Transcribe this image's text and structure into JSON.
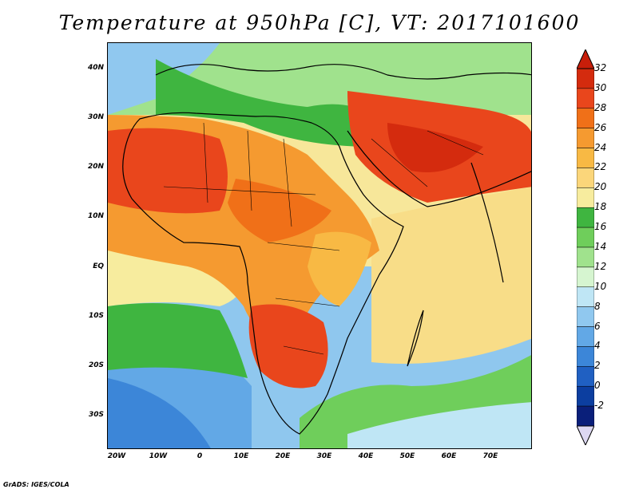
{
  "title": "Temperature at 950hPa [C], VT: 2017101600",
  "footer": "GrADS: IGES/COLA",
  "axes": {
    "lat_labels": [
      "40N",
      "30N",
      "20N",
      "10N",
      "EQ",
      "10S",
      "20S",
      "30S"
    ],
    "lon_labels": [
      "20W",
      "10W",
      "0",
      "10E",
      "20E",
      "30E",
      "40E",
      "50E",
      "60E",
      "70E"
    ]
  },
  "colorbar": {
    "levels": [
      "32",
      "30",
      "28",
      "26",
      "24",
      "22",
      "20",
      "18",
      "16",
      "14",
      "12",
      "10",
      "8",
      "6",
      "4",
      "2",
      "0",
      "-2"
    ],
    "colors": [
      "#d42b0e",
      "#e9461c",
      "#f07018",
      "#f59a30",
      "#f8b944",
      "#fbd67a",
      "#f7ec9e",
      "#3fb540",
      "#6fce5b",
      "#a0e28d",
      "#d6f5d0",
      "#bfe6f5",
      "#90c8ef",
      "#62a8e6",
      "#3c86d8",
      "#2060c2",
      "#0c3ea0",
      "#0a1f7a"
    ],
    "overflow_top": "#c81e0a",
    "underflow_bottom": "#ddd8f2"
  },
  "map": {
    "region": "Africa, Arabia, and India",
    "lon_range": [
      -22,
      80
    ],
    "lat_range": [
      -37,
      45
    ],
    "variable": "Temperature",
    "level": "950hPa",
    "units": "C",
    "valid_time": "2017101600"
  }
}
